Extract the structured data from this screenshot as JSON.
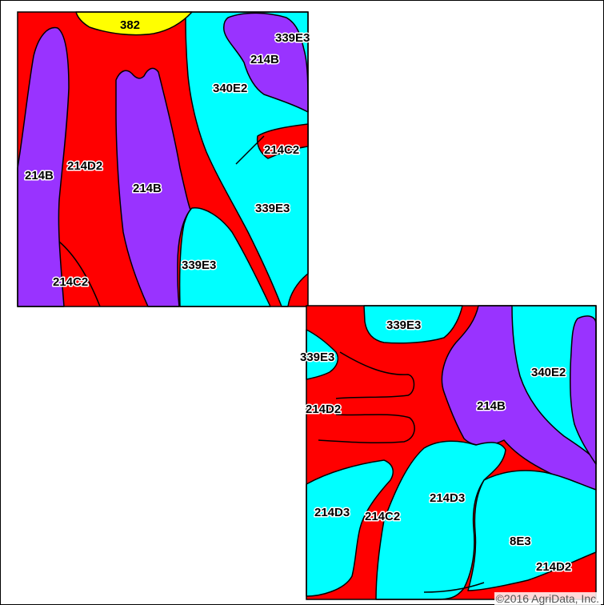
{
  "map": {
    "copyright": "©2016 AgriData, Inc.",
    "colors": {
      "red": "#ff0000",
      "cyan": "#00ffff",
      "purple": "#9933ff",
      "yellow": "#ffff00"
    },
    "labels": {
      "a382": "382",
      "a339E3": "339E3",
      "a214B_top": "214B",
      "a340E2": "340E2",
      "a214C2_right": "214C2",
      "a214B_left": "214B",
      "a214D2_left": "214D2",
      "a214B_mid": "214B",
      "a339E3_mid": "339E3",
      "a339E3_low": "339E3",
      "a214C2_bottom": "214C2",
      "b339E3_top": "339E3",
      "b339E3_left": "339E3",
      "b340E2": "340E2",
      "b214D2_left": "214D2",
      "b214B": "214B",
      "b214D3_mid": "214D3",
      "b214D3_left": "214D3",
      "b214C2": "214C2",
      "b8E3": "8E3",
      "b214D2_right": "214D2"
    }
  }
}
